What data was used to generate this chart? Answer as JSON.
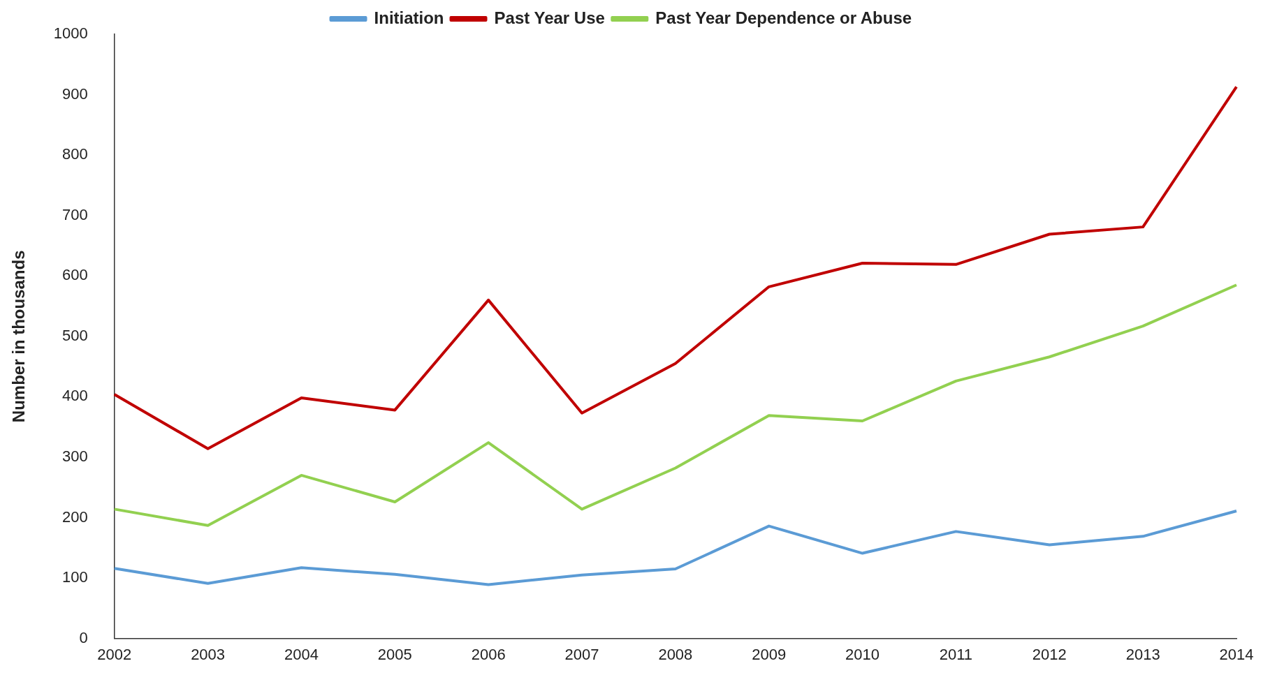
{
  "chart_data": {
    "type": "line",
    "ylabel": "Number in thousands",
    "categories": [
      "2002",
      "2003",
      "2004",
      "2005",
      "2006",
      "2007",
      "2008",
      "2009",
      "2010",
      "2011",
      "2012",
      "2013",
      "2014"
    ],
    "ylim": [
      0,
      1000
    ],
    "yticks": [
      0,
      100,
      200,
      300,
      400,
      500,
      600,
      700,
      800,
      900,
      1000
    ],
    "grid": false,
    "legend": "top",
    "marker": "none",
    "series": [
      {
        "name": "Initiation",
        "color": "#5b9bd5",
        "values": [
          116,
          91,
          117,
          106,
          89,
          105,
          115,
          186,
          141,
          177,
          155,
          169,
          211
        ]
      },
      {
        "name": "Past Year Use",
        "color": "#c00000",
        "values": [
          404,
          314,
          398,
          378,
          560,
          373,
          455,
          582,
          621,
          619,
          669,
          681,
          913
        ]
      },
      {
        "name": "Past Year Dependence or Abuse",
        "color": "#92d050",
        "values": [
          214,
          187,
          270,
          226,
          324,
          214,
          282,
          369,
          360,
          426,
          466,
          517,
          585
        ]
      }
    ]
  }
}
